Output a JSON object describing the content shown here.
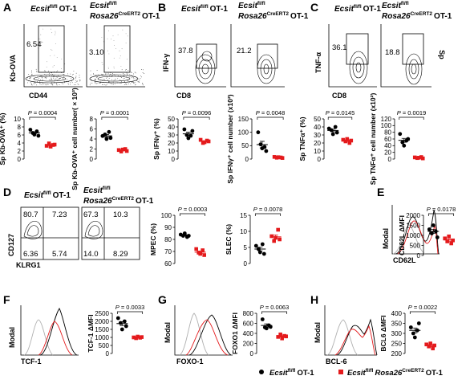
{
  "panels": {
    "A": "A",
    "B": "B",
    "C": "C",
    "D": "D",
    "E": "E",
    "F": "F",
    "G": "G",
    "H": "H"
  },
  "genotypes": {
    "control": "Ecsit",
    "control_sup": "fl/fl",
    "ko_gene": "Rosa26",
    "ko_sup": "CreERT2",
    "ot1": "OT-1"
  },
  "flow": {
    "A": {
      "ylabel": "Kb-OVA",
      "xlabel": "CD44",
      "ctrl_pct": "6.54",
      "ko_pct": "3.10"
    },
    "B": {
      "ylabel": "IFN-γ",
      "xlabel": "CD8",
      "ctrl_pct": "37.8",
      "ko_pct": "21.2"
    },
    "C": {
      "ylabel": "TNF-α",
      "xlabel": "CD8",
      "ctrl_pct": "36.1",
      "ko_pct": "18.8",
      "side_label": "Sp"
    },
    "D": {
      "ylabel": "CD127",
      "xlabel": "KLRG1",
      "ctrl": {
        "tl": "80.7",
        "tr": "7.23",
        "bl": "6.36",
        "br": "5.74"
      },
      "ko": {
        "tl": "67.3",
        "tr": "10.3",
        "bl": "14.0",
        "br": "8.29"
      }
    }
  },
  "histograms": {
    "E": {
      "ylabel": "Modal",
      "xlabel": "CD62L"
    },
    "F": {
      "ylabel": "Modal",
      "xlabel": "TCF-1"
    },
    "G": {
      "ylabel": "Modal",
      "xlabel": "FOXO-1"
    },
    "H": {
      "ylabel": "Modal",
      "xlabel": "BCL-6"
    }
  },
  "colors": {
    "control": "#000000",
    "ko": "#e41a1c",
    "isotype": "#b0b0b0"
  },
  "legend": {
    "control": "Ecsit",
    "control_sup": "fl/fl",
    "control_tail": "OT-1",
    "ko": "Ecsit",
    "ko_sup": "fl/fl",
    "ko_mid": "Rosa26",
    "ko_sup2": "CreERT2",
    "ko_tail": "OT-1"
  },
  "chart_data": [
    {
      "id": "A1",
      "type": "scatter",
      "ylabel": "Sp Kb-OVA⁺ (%)",
      "yticks": [
        "0",
        "2",
        "4",
        "6",
        "8",
        "10"
      ],
      "ylim": [
        0,
        10
      ],
      "pvalue": "P = 0.0004",
      "control": [
        7.3,
        6.5,
        6.1,
        6.9,
        5.8
      ],
      "ko": [
        3.3,
        3.9,
        3.1,
        3.5,
        3.6
      ]
    },
    {
      "id": "A2",
      "type": "scatter",
      "ylabel": "Sp Kb-OVA⁺ cell number( × 10³)",
      "yticks": [
        "0",
        "2",
        "4",
        "6",
        "8"
      ],
      "ylim": [
        0,
        8
      ],
      "pvalue": "P = 0.0001",
      "control": [
        4.6,
        4.9,
        4.0,
        5.4,
        4.2
      ],
      "ko": [
        1.8,
        1.5,
        1.9,
        2.0,
        1.6
      ]
    },
    {
      "id": "B1",
      "type": "scatter",
      "ylabel": "Sp IFNγ⁺ (%)",
      "yticks": [
        "0",
        "10",
        "20",
        "30",
        "40",
        "50"
      ],
      "ylim": [
        0,
        50
      ],
      "pvalue": "P = 0.0096",
      "control": [
        37,
        30,
        26,
        29,
        35
      ],
      "ko": [
        24,
        20,
        21,
        23,
        22
      ]
    },
    {
      "id": "B2",
      "type": "scatter",
      "ylabel": "Sp IFNγ⁺ cell number (x10²)",
      "yticks": [
        "0",
        "50",
        "100",
        "150"
      ],
      "ylim": [
        0,
        150
      ],
      "pvalue": "P = 0.0048",
      "control": [
        100,
        55,
        40,
        45,
        30
      ],
      "ko": [
        8,
        5,
        7,
        6,
        4
      ]
    },
    {
      "id": "C1",
      "type": "scatter",
      "ylabel": "Sp TNFα⁺ (%)",
      "yticks": [
        "0",
        "10",
        "20",
        "30",
        "40",
        "50"
      ],
      "ylim": [
        0,
        50
      ],
      "pvalue": "P = 0.0145",
      "control": [
        38,
        36,
        31,
        40,
        33
      ],
      "ko": [
        24,
        22,
        25,
        20,
        23
      ]
    },
    {
      "id": "C2",
      "type": "scatter",
      "ylabel": "Sp TNFα⁺ cell number (x10²)",
      "yticks": [
        "0",
        "20",
        "40",
        "60",
        "80",
        "100",
        "120"
      ],
      "ylim": [
        0,
        120
      ],
      "pvalue": "P = 0.0019",
      "control": [
        75,
        50,
        40,
        55,
        60
      ],
      "ko": [
        5,
        3,
        4,
        6,
        2
      ]
    },
    {
      "id": "D1",
      "type": "scatter",
      "ylabel": "MPEC (%)",
      "yticks": [
        "60",
        "70",
        "80",
        "90",
        "100"
      ],
      "ylim": [
        60,
        100
      ],
      "pvalue": "P = 0.0003",
      "control": [
        84,
        83,
        85,
        82,
        83
      ],
      "ko": [
        72,
        69,
        68,
        71,
        67
      ]
    },
    {
      "id": "D2",
      "type": "scatter",
      "ylabel": "SLEC (%)",
      "yticks": [
        "0",
        "5",
        "10",
        "15"
      ],
      "ylim": [
        0,
        15
      ],
      "pvalue": "P = 0.0078",
      "control": [
        5.5,
        4.5,
        3.5,
        6.0,
        3.0
      ],
      "ko": [
        8.5,
        7.0,
        8.0,
        10.5,
        7.5
      ]
    },
    {
      "id": "E1",
      "type": "scatter",
      "ylabel": "CD62L ΔMFI",
      "yticks": [
        "0",
        "500",
        "1000",
        "1500",
        "2000"
      ],
      "ylim": [
        0,
        2000
      ],
      "pvalue": "P = 0.0178",
      "control": [
        1300,
        1100,
        1500,
        1200,
        900
      ],
      "ko": [
        850,
        700,
        950,
        600,
        750
      ]
    },
    {
      "id": "F1",
      "type": "scatter",
      "ylabel": "TCF-1 ΔMFI",
      "yticks": [
        "0",
        "500",
        "1000",
        "1500",
        "2000",
        "2500"
      ],
      "ylim": [
        0,
        2500
      ],
      "pvalue": "P = 0.0033",
      "control": [
        2200,
        1900,
        1500,
        2000,
        1700
      ],
      "ko": [
        1000,
        950,
        1050,
        980,
        1020
      ]
    },
    {
      "id": "G1",
      "type": "scatter",
      "ylabel": "FOXO1 ΔMFI",
      "yticks": [
        "0",
        "200",
        "400",
        "600",
        "800"
      ],
      "ylim": [
        0,
        800
      ],
      "pvalue": "P = 0.0063",
      "control": [
        680,
        520,
        500,
        560,
        530
      ],
      "ko": [
        330,
        380,
        300,
        350,
        340
      ]
    },
    {
      "id": "H1",
      "type": "scatter",
      "ylabel": "BCL6 ΔMFI",
      "yticks": [
        "200",
        "250",
        "300",
        "350",
        "400"
      ],
      "ylim": [
        200,
        400
      ],
      "pvalue": "P = 0.0022",
      "control": [
        330,
        300,
        280,
        315,
        350
      ],
      "ko": [
        245,
        235,
        250,
        225,
        240
      ]
    }
  ]
}
